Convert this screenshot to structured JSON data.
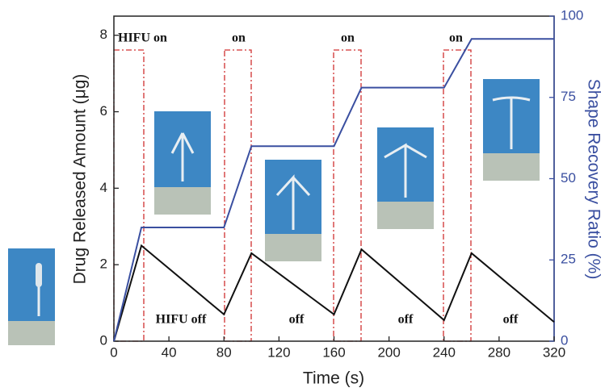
{
  "chart_data": {
    "type": "line",
    "x_label": "Time (s)",
    "y_label": "Drug Released Amount (μg)",
    "y2_label": "Shape Recovery Ratio (%)",
    "annotations": [
      "HIFU on",
      "on",
      "on",
      "on",
      "HIFU off",
      "off",
      "off",
      "off"
    ],
    "x": [
      0,
      20,
      80,
      100,
      160,
      180,
      240,
      260,
      320
    ],
    "series": [
      {
        "color": "#111111",
        "values": [
          0,
          2.5,
          0.7,
          2.3,
          0.7,
          2.4,
          0.55,
          2.3,
          0.5
        ]
      },
      {
        "color": "#3a4fa0",
        "axis": "y2",
        "values": [
          0,
          35,
          35,
          60,
          60,
          78,
          78,
          93,
          93
        ]
      }
    ],
    "xlim": [
      0,
      320
    ],
    "xticks": [
      0,
      40,
      80,
      120,
      160,
      200,
      240,
      280,
      320
    ],
    "ylim": [
      0,
      8.5
    ],
    "yticks": [
      0,
      2,
      4,
      6,
      8
    ],
    "y2lim": [
      0,
      100
    ],
    "y2ticks": [
      0,
      25,
      50,
      75,
      100
    ]
  }
}
